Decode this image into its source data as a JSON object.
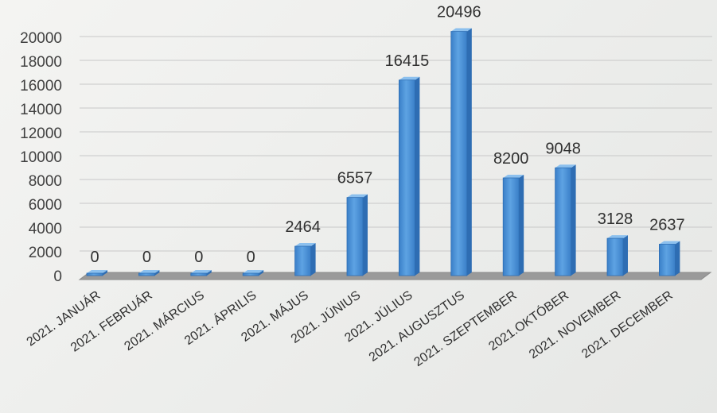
{
  "chart_data": {
    "type": "bar",
    "categories": [
      "2021. JANUÁR",
      "2021. FEBRUÁR",
      "2021. MÁRCIUS",
      "2021. ÁPRILIS",
      "2021. MÁJUS",
      "2021. JÚNIUS",
      "2021. JÚLIUS",
      "2021. AUGUSZTUS",
      "2021. SZEPTEMBER",
      "2021.OKTÓBER",
      "2021. NOVEMBER",
      "2021. DECEMBER"
    ],
    "values": [
      0,
      0,
      0,
      0,
      2464,
      6557,
      16415,
      20496,
      8200,
      9048,
      3128,
      2637
    ],
    "y_ticks": [
      "0",
      "2000",
      "4000",
      "6000",
      "8000",
      "10000",
      "12000",
      "14000",
      "16000",
      "18000",
      "20000"
    ],
    "ylim": [
      0,
      20000
    ],
    "title": "",
    "xlabel": "",
    "ylabel": "",
    "grid": true,
    "legend": "none",
    "style": "3d-column",
    "colors": {
      "bar_front": "#4a90d6",
      "bar_side": "#2e6db3",
      "bar_top": "#8cc0ee",
      "floor": "#9a9a9a",
      "gridline": "#c8c8c8"
    }
  }
}
